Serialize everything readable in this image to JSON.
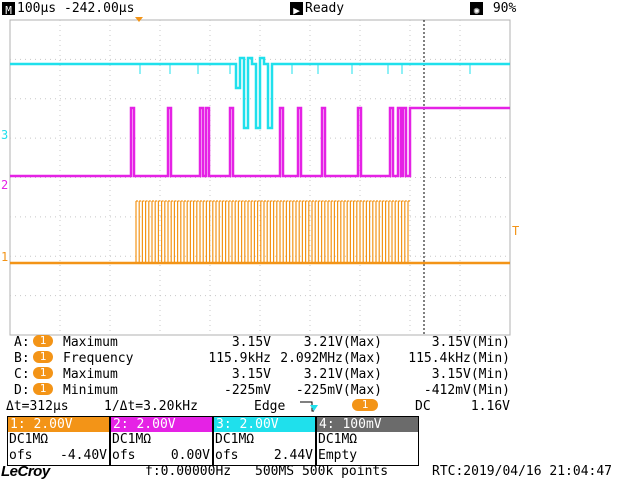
{
  "status_bar": {
    "timebase": "100µs",
    "delay": "-242.00µs",
    "run_state": "Ready",
    "brightness": "90%"
  },
  "colors": {
    "ch1": "#f39417",
    "ch2": "#e522e5",
    "ch3": "#1fe0ec",
    "ch4": "#6b6b6b",
    "grid": "#c8c8c8"
  },
  "trace_markers": {
    "ch1": "1",
    "ch2": "2",
    "ch3": "3",
    "trigger_level": "T"
  },
  "measurements": [
    {
      "slot": "A:",
      "channel": "1",
      "name": "Maximum",
      "value": "3.15V",
      "max": "3.21V(Max)",
      "min": "3.15V(Min)"
    },
    {
      "slot": "B:",
      "channel": "1",
      "name": "Frequency",
      "value": "115.9kHz",
      "max": "2.092MHz(Max)",
      "min": "115.4kHz(Min)"
    },
    {
      "slot": "C:",
      "channel": "1",
      "name": "Maximum",
      "value": "3.15V",
      "max": "3.21V(Max)",
      "min": "3.15V(Min)"
    },
    {
      "slot": "D:",
      "channel": "1",
      "name": "Minimum",
      "value": "-225mV",
      "max": "-225mV(Max)",
      "min": "-412mV(Min)"
    }
  ],
  "cursor": {
    "delta_t": "Δt=312µs",
    "inv_delta_t": "1/Δt=3.20kHz"
  },
  "trigger": {
    "type": "Edge",
    "source": "1",
    "coupling": "DC",
    "level": "1.16V"
  },
  "channels": [
    {
      "header": "1: 2.00V",
      "coupling": "DC1MΩ",
      "ofs_label": "ofs",
      "ofs": "-4.40V"
    },
    {
      "header": "2: 2.00V",
      "coupling": "DC1MΩ",
      "ofs_label": "ofs",
      "ofs": "0.00V"
    },
    {
      "header": "3: 2.00V",
      "coupling": "DC1MΩ",
      "ofs_label": "ofs",
      "ofs": "2.44V"
    },
    {
      "header": "4: 100mV",
      "coupling": "DC1MΩ",
      "ofs_label": "Empty",
      "ofs": ""
    }
  ],
  "bottom_bar": {
    "brand": "LeCroy",
    "freq": "f:0.00000Hz",
    "sample": "500MS 500k points",
    "rtc": "RTC:2019/04/16 21:04:47"
  }
}
